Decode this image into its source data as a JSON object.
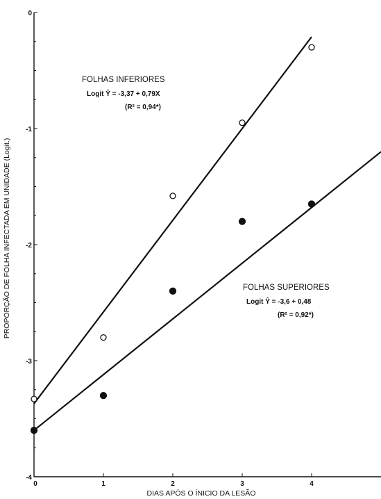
{
  "chart_data": {
    "type": "scatter",
    "title": "",
    "xlabel": "DIAS APÓS O ÍNICIO DA LESÃO",
    "ylabel": "PROPORÇÃO DE FOLHA INFECTADA EM UNIDADE (Logit.)",
    "xlim": [
      0,
      5
    ],
    "ylim": [
      -4,
      0
    ],
    "x_ticks": [
      "0",
      "1",
      "2",
      "3",
      "4"
    ],
    "y_ticks": [
      "0",
      "-1",
      "-2",
      "-3",
      "-4"
    ],
    "grid": false,
    "series": [
      {
        "marker": "open-circle",
        "x": [
          0,
          1,
          2,
          3,
          4
        ],
        "y": [
          -3.33,
          -2.8,
          -1.58,
          -0.95,
          -0.3
        ],
        "fit": {
          "intercept": -3.37,
          "slope": 0.79,
          "x_range": [
            0,
            4
          ]
        }
      },
      {
        "marker": "filled-circle",
        "x": [
          0,
          1,
          2,
          3,
          4
        ],
        "y": [
          -3.6,
          -3.3,
          -2.4,
          -1.8,
          -1.65
        ],
        "fit": {
          "intercept": -3.6,
          "slope": 0.48,
          "x_range": [
            0,
            5
          ]
        }
      }
    ],
    "annotations": [
      {
        "id": "inferiores",
        "title": "FOLHAS INFERIORES",
        "equation": "Logit Ŷ = -3,37 + 0,79X",
        "r2": "(R² = 0,94*)"
      },
      {
        "id": "superiores",
        "title": "FOLHAS SUPERIORES",
        "equation": "Logit Ŷ = -3,6 + 0,48",
        "r2": "(R² = 0,92*)"
      }
    ]
  }
}
